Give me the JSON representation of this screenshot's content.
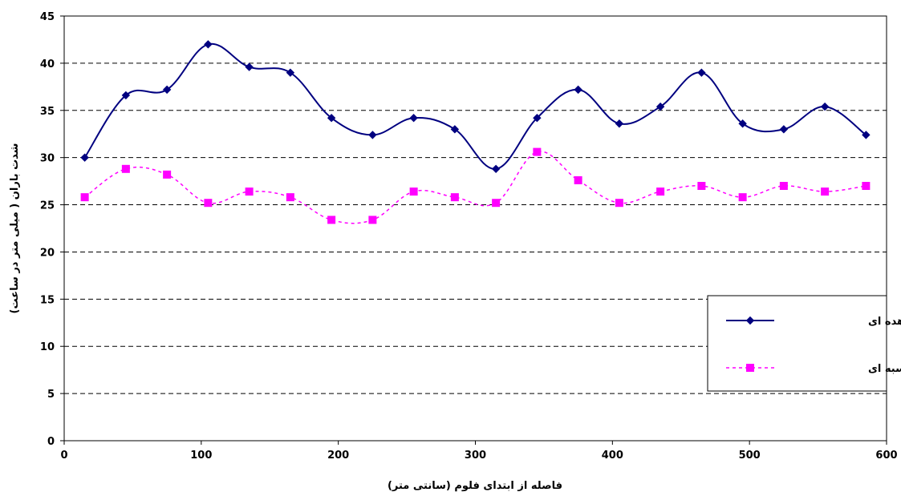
{
  "chart_data": {
    "type": "line",
    "title": "",
    "xlabel": "فاصله از ابتدای فلوم (سانتی متر)",
    "ylabel": "شدت باران ( میلی متر در ساعت)",
    "xlim": [
      0,
      600
    ],
    "ylim": [
      0,
      45
    ],
    "xticks": [
      "0",
      "100",
      "200",
      "300",
      "400",
      "500",
      "600"
    ],
    "yticks": [
      "0",
      "5",
      "10",
      "15",
      "20",
      "25",
      "30",
      "35",
      "40",
      "45"
    ],
    "grid": "horizontal dashed",
    "legend_position": "right",
    "x": [
      15,
      45,
      75,
      105,
      135,
      165,
      195,
      225,
      255,
      285,
      315,
      345,
      375,
      405,
      435,
      465,
      495,
      525,
      555,
      585
    ],
    "series": [
      {
        "name": "شدت مشاهده ای",
        "color": "#000080",
        "marker": "diamond",
        "line": "solid",
        "values": [
          30.0,
          36.6,
          37.2,
          42.0,
          39.6,
          39.0,
          34.2,
          32.4,
          34.2,
          33.0,
          28.8,
          34.2,
          37.2,
          33.6,
          35.4,
          39.0,
          33.6,
          33.0,
          35.4,
          32.4
        ]
      },
      {
        "name": "شدت محاسبه ای",
        "color": "#ff00ff",
        "marker": "square",
        "line": "dashed",
        "values": [
          25.8,
          28.8,
          28.2,
          25.2,
          26.4,
          25.8,
          23.4,
          23.4,
          26.4,
          25.8,
          25.2,
          30.6,
          27.6,
          25.2,
          26.4,
          27.0,
          25.8,
          27.0,
          26.4,
          27.0
        ]
      }
    ]
  }
}
